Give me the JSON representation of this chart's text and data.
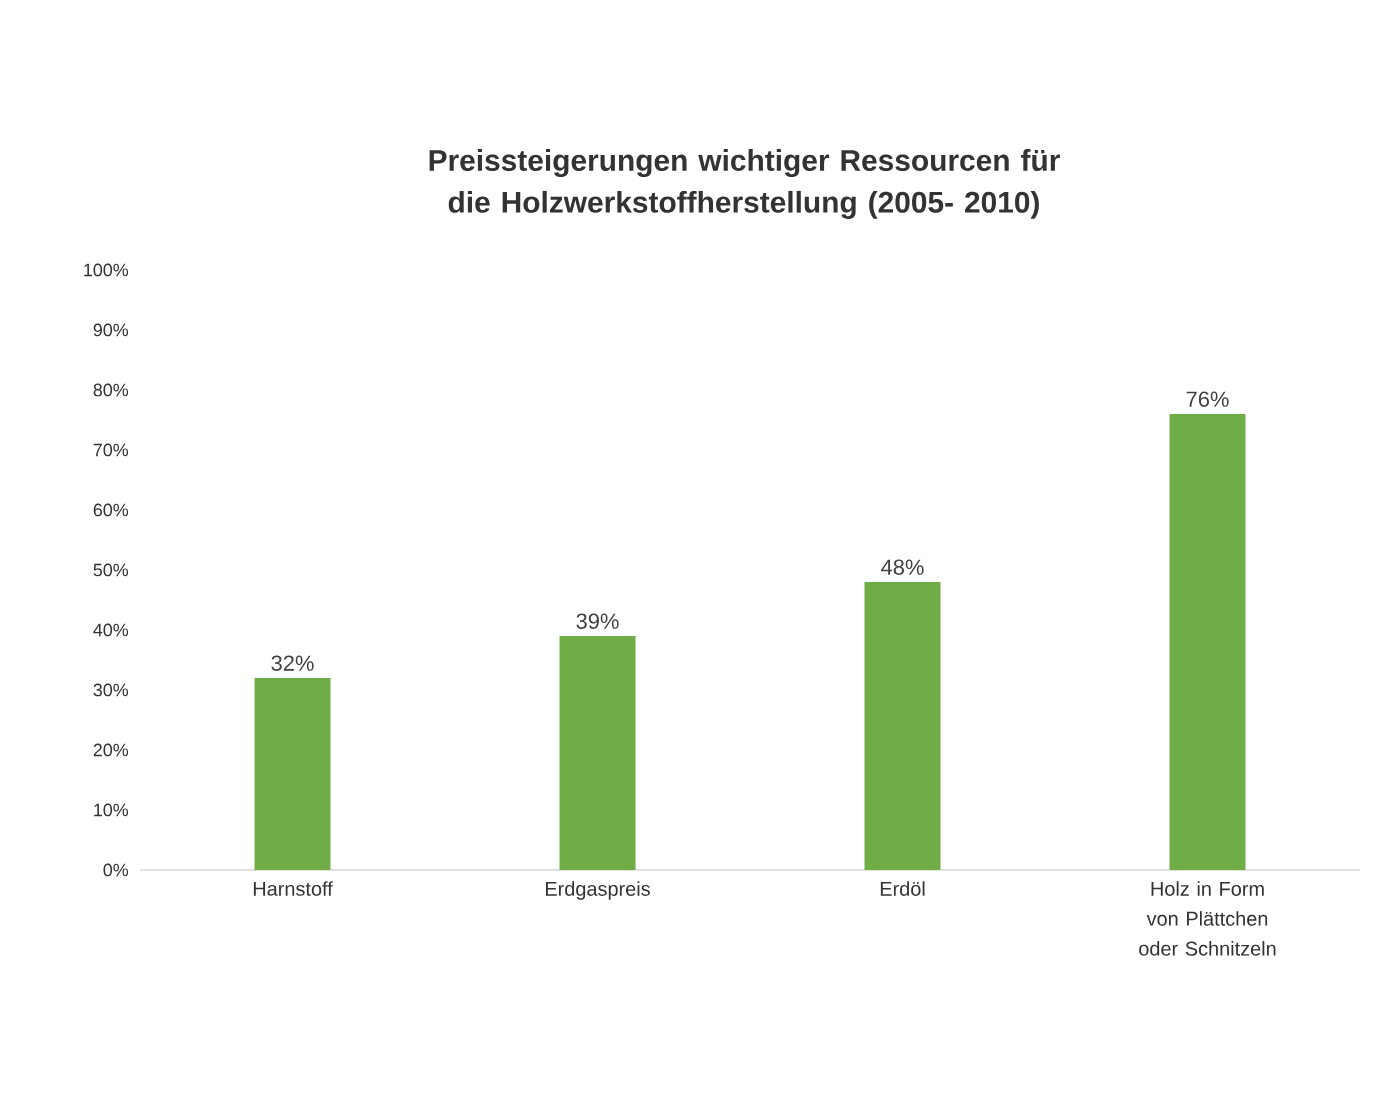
{
  "chart_data": {
    "type": "bar",
    "title": "Preissteigerungen wichtiger Ressourcen für die Holzwerkstoffherstellung (2005- 2010)",
    "categories": [
      "Harnstoff",
      "Erdgaspreis",
      "Erdöl",
      "Holz in Form von Plättchen oder Schnitzeln"
    ],
    "values": [
      32,
      39,
      48,
      76
    ],
    "color": "#70ad47",
    "value_labels": [
      "32%",
      "39%",
      "48%",
      "76%"
    ],
    "ylim": [
      0,
      100
    ],
    "yticks": [
      {
        "value": 0,
        "label": "0%"
      },
      {
        "value": 10,
        "label": "10%"
      },
      {
        "value": 20,
        "label": "20%"
      },
      {
        "value": 30,
        "label": "30%"
      },
      {
        "value": 40,
        "label": "40%"
      },
      {
        "value": 50,
        "label": "50%"
      },
      {
        "value": 60,
        "label": "60%"
      },
      {
        "value": 70,
        "label": "70%"
      },
      {
        "value": 80,
        "label": "80%"
      },
      {
        "value": 90,
        "label": "90%"
      },
      {
        "value": 100,
        "label": "100%"
      }
    ],
    "grid": false
  }
}
